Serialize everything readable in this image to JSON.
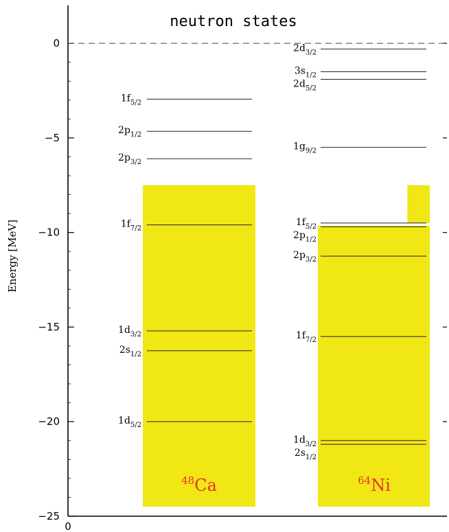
{
  "chart_data": {
    "type": "level-diagram",
    "title": "neutron states",
    "xlabel": "",
    "ylabel": "Energy [MeV]",
    "ylim": [
      -25,
      2
    ],
    "y_ticks": [
      0,
      -5,
      -10,
      -15,
      -20,
      -25
    ],
    "x_tick_labels": [
      "0"
    ],
    "zero_line": "dashed",
    "fill_color": "#f1e714",
    "label_color": "#e8322a",
    "columns": [
      {
        "nucleus_mass": "48",
        "nucleus_symbol": "Ca",
        "filled_range": [
          -24.5,
          -7.5
        ],
        "levels": [
          {
            "state": "1f",
            "j": "5/2",
            "energy": -2.95
          },
          {
            "state": "2p",
            "j": "1/2",
            "energy": -4.65
          },
          {
            "state": "2p",
            "j": "3/2",
            "energy": -6.1
          },
          {
            "state": "1f",
            "j": "7/2",
            "energy": -9.6
          },
          {
            "state": "1d",
            "j": "3/2",
            "energy": -15.2
          },
          {
            "state": "2s",
            "j": "1/2",
            "energy": -16.25
          },
          {
            "state": "1d",
            "j": "5/2",
            "energy": -20.0
          }
        ]
      },
      {
        "nucleus_mass": "64",
        "nucleus_symbol": "Ni",
        "filled_range": [
          -24.5,
          -9.65
        ],
        "partial_fill": {
          "range": [
            -9.5,
            -7.5
          ],
          "fraction": 0.2
        },
        "levels": [
          {
            "state": "2d",
            "j": "3/2",
            "energy": -0.3
          },
          {
            "state": "3s",
            "j": "1/2",
            "energy": -1.5
          },
          {
            "state": "2d",
            "j": "5/2",
            "energy": -1.9
          },
          {
            "state": "1g",
            "j": "9/2",
            "energy": -5.5
          },
          {
            "state": "1f",
            "j": "5/2",
            "energy": -9.5
          },
          {
            "state": "2p",
            "j": "1/2",
            "energy": -9.7
          },
          {
            "state": "2p",
            "j": "3/2",
            "energy": -11.25
          },
          {
            "state": "1f",
            "j": "7/2",
            "energy": -15.5
          },
          {
            "state": "1d",
            "j": "3/2",
            "energy": -21.0
          },
          {
            "state": "2s",
            "j": "1/2",
            "energy": -21.2
          }
        ]
      }
    ]
  }
}
